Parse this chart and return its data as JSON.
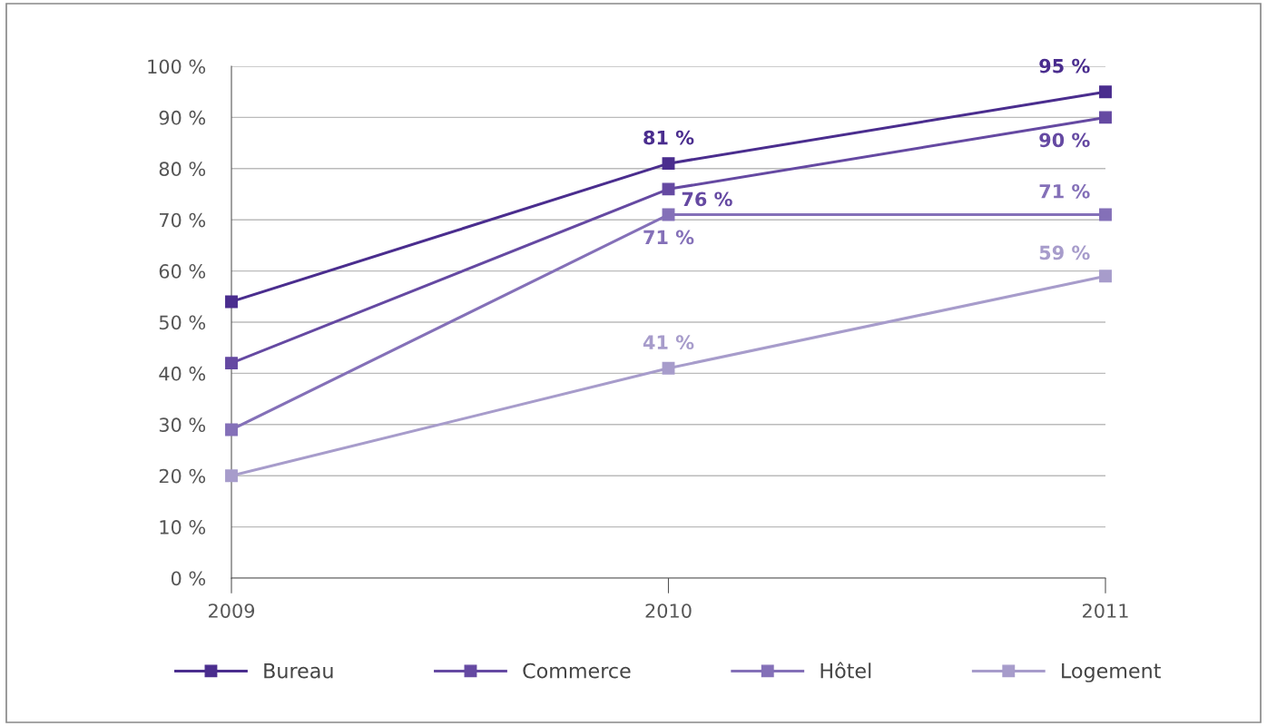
{
  "chart_data": {
    "type": "line",
    "categories": [
      "2009",
      "2010",
      "2011"
    ],
    "series": [
      {
        "name": "Bureau",
        "color": "#4a2d8e",
        "values": [
          54,
          81,
          95
        ],
        "value_labels": [
          null,
          "81 %",
          "95 %"
        ]
      },
      {
        "name": "Commerce",
        "color": "#6549a2",
        "values": [
          42,
          76,
          90
        ],
        "value_labels": [
          null,
          "76 %",
          "90 %"
        ]
      },
      {
        "name": "Hôtel",
        "color": "#8470b8",
        "values": [
          29,
          71,
          71
        ],
        "value_labels": [
          null,
          "71 %",
          "71 %"
        ]
      },
      {
        "name": "Logement",
        "color": "#a79ccb",
        "values": [
          20,
          41,
          59
        ],
        "value_labels": [
          null,
          "41 %",
          "59 %"
        ]
      }
    ],
    "ylim": [
      0,
      100
    ],
    "yticks": [
      {
        "value": 0,
        "label": "0 %"
      },
      {
        "value": 10,
        "label": "10 %"
      },
      {
        "value": 20,
        "label": "20 %"
      },
      {
        "value": 30,
        "label": "30 %"
      },
      {
        "value": 40,
        "label": "40 %"
      },
      {
        "value": 50,
        "label": "50 %"
      },
      {
        "value": 60,
        "label": "60 %"
      },
      {
        "value": 70,
        "label": "70 %"
      },
      {
        "value": 80,
        "label": "80 %"
      },
      {
        "value": 90,
        "label": "90 %"
      },
      {
        "value": 100,
        "label": "100 %"
      }
    ],
    "grid": "y",
    "legend": "bottom",
    "marker": "square",
    "line_style": "solid"
  }
}
